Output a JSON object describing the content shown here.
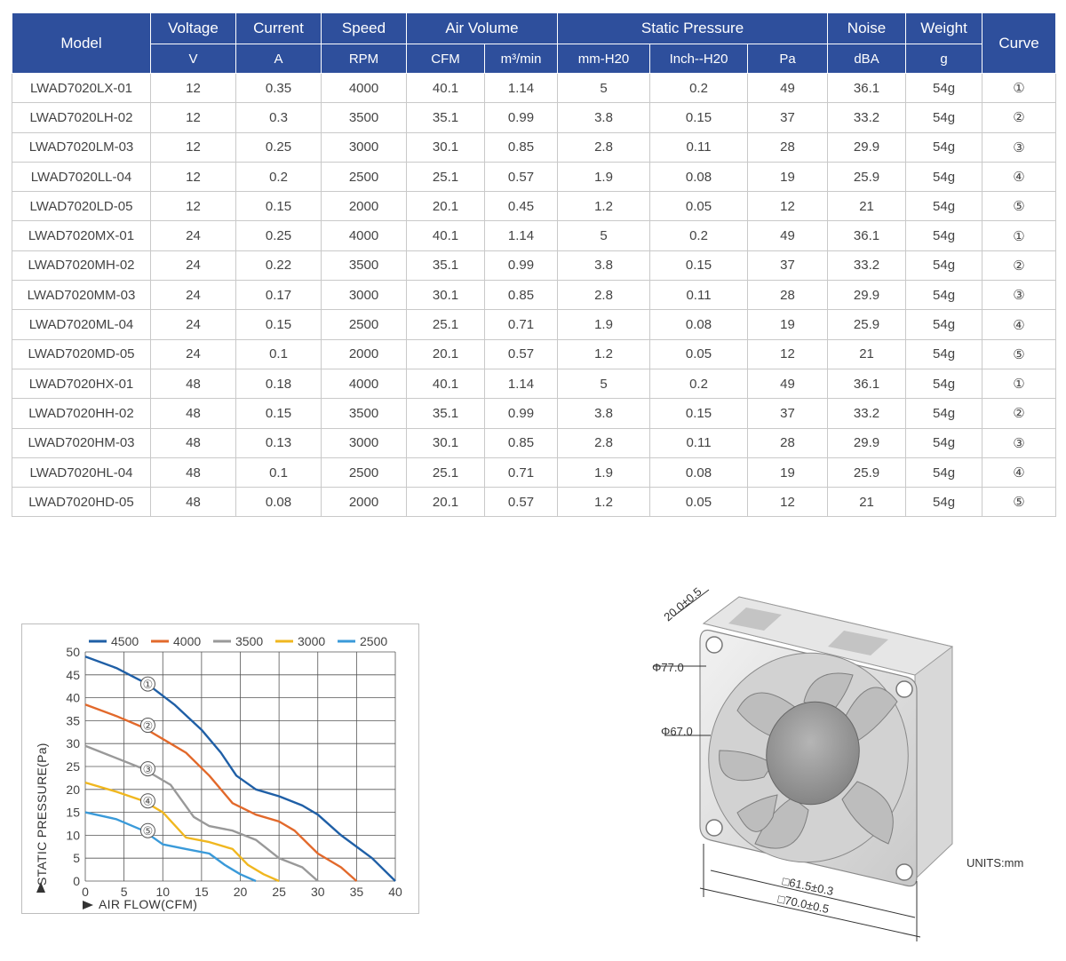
{
  "table": {
    "groups": [
      {
        "label": "Model",
        "rowspan": true
      },
      {
        "label": "Voltage",
        "colspan": 1
      },
      {
        "label": "Current",
        "colspan": 1
      },
      {
        "label": "Speed",
        "colspan": 1
      },
      {
        "label": "Air Volume",
        "colspan": 2
      },
      {
        "label": "Static Pressure",
        "colspan": 3
      },
      {
        "label": "Noise",
        "colspan": 1
      },
      {
        "label": "Weight",
        "colspan": 1
      },
      {
        "label": "Curve",
        "rowspan": true
      }
    ],
    "units": [
      "V",
      "A",
      "RPM",
      "CFM",
      "m³/min",
      "mm-H20",
      "Inch--H20",
      "Pa",
      "dBA",
      "g"
    ],
    "rows": [
      [
        "LWAD7020LX-01",
        "12",
        "0.35",
        "4000",
        "40.1",
        "1.14",
        "5",
        "0.2",
        "49",
        "36.1",
        "54g",
        "①"
      ],
      [
        "LWAD7020LH-02",
        "12",
        "0.3",
        "3500",
        "35.1",
        "0.99",
        "3.8",
        "0.15",
        "37",
        "33.2",
        "54g",
        "②"
      ],
      [
        "LWAD7020LM-03",
        "12",
        "0.25",
        "3000",
        "30.1",
        "0.85",
        "2.8",
        "0.11",
        "28",
        "29.9",
        "54g",
        "③"
      ],
      [
        "LWAD7020LL-04",
        "12",
        "0.2",
        "2500",
        "25.1",
        "0.57",
        "1.9",
        "0.08",
        "19",
        "25.9",
        "54g",
        "④"
      ],
      [
        "LWAD7020LD-05",
        "12",
        "0.15",
        "2000",
        "20.1",
        "0.45",
        "1.2",
        "0.05",
        "12",
        "21",
        "54g",
        "⑤"
      ],
      [
        "LWAD7020MX-01",
        "24",
        "0.25",
        "4000",
        "40.1",
        "1.14",
        "5",
        "0.2",
        "49",
        "36.1",
        "54g",
        "①"
      ],
      [
        "LWAD7020MH-02",
        "24",
        "0.22",
        "3500",
        "35.1",
        "0.99",
        "3.8",
        "0.15",
        "37",
        "33.2",
        "54g",
        "②"
      ],
      [
        "LWAD7020MM-03",
        "24",
        "0.17",
        "3000",
        "30.1",
        "0.85",
        "2.8",
        "0.11",
        "28",
        "29.9",
        "54g",
        "③"
      ],
      [
        "LWAD7020ML-04",
        "24",
        "0.15",
        "2500",
        "25.1",
        "0.71",
        "1.9",
        "0.08",
        "19",
        "25.9",
        "54g",
        "④"
      ],
      [
        "LWAD7020MD-05",
        "24",
        "0.1",
        "2000",
        "20.1",
        "0.57",
        "1.2",
        "0.05",
        "12",
        "21",
        "54g",
        "⑤"
      ],
      [
        "LWAD7020HX-01",
        "48",
        "0.18",
        "4000",
        "40.1",
        "1.14",
        "5",
        "0.2",
        "49",
        "36.1",
        "54g",
        "①"
      ],
      [
        "LWAD7020HH-02",
        "48",
        "0.15",
        "3500",
        "35.1",
        "0.99",
        "3.8",
        "0.15",
        "37",
        "33.2",
        "54g",
        "②"
      ],
      [
        "LWAD7020HM-03",
        "48",
        "0.13",
        "3000",
        "30.1",
        "0.85",
        "2.8",
        "0.11",
        "28",
        "29.9",
        "54g",
        "③"
      ],
      [
        "LWAD7020HL-04",
        "48",
        "0.1",
        "2500",
        "25.1",
        "0.71",
        "1.9",
        "0.08",
        "19",
        "25.9",
        "54g",
        "④"
      ],
      [
        "LWAD7020HD-05",
        "48",
        "0.08",
        "2000",
        "20.1",
        "0.57",
        "1.2",
        "0.05",
        "12",
        "21",
        "54g",
        "⑤"
      ]
    ]
  },
  "chart_data": {
    "type": "line",
    "xlabel": "AIR FLOW(CFM)",
    "ylabel": "STATIC PRESSURE(Pa)",
    "xlim": [
      0,
      40
    ],
    "ylim": [
      0,
      50
    ],
    "xticks": [
      "0",
      "5",
      "10",
      "15",
      "20",
      "25",
      "30",
      "35",
      "40"
    ],
    "yticks": [
      "0",
      "5",
      "10",
      "15",
      "20",
      "25",
      "30",
      "35",
      "40",
      "45",
      "50"
    ],
    "grid": true,
    "legend": "top",
    "series": [
      {
        "name": "4500",
        "color": "#1f5fa6",
        "label": "①",
        "label_at": [
          7.5,
          43
        ],
        "points": [
          [
            0,
            49
          ],
          [
            4,
            46.5
          ],
          [
            8,
            43
          ],
          [
            11.5,
            38.5
          ],
          [
            15,
            33
          ],
          [
            17.5,
            28
          ],
          [
            19.5,
            23
          ],
          [
            22,
            20
          ],
          [
            25,
            18.5
          ],
          [
            28,
            16.5
          ],
          [
            30,
            14.5
          ],
          [
            33,
            10
          ],
          [
            37,
            5
          ],
          [
            40,
            0
          ]
        ]
      },
      {
        "name": "4000",
        "color": "#e2692b",
        "label": "②",
        "label_at": [
          7.5,
          34
        ],
        "points": [
          [
            0,
            38.5
          ],
          [
            4,
            36
          ],
          [
            7.5,
            33.5
          ],
          [
            11,
            30
          ],
          [
            13,
            28
          ],
          [
            16,
            23
          ],
          [
            19,
            17
          ],
          [
            22,
            14.5
          ],
          [
            25,
            13
          ],
          [
            27,
            11
          ],
          [
            30,
            6
          ],
          [
            33,
            3
          ],
          [
            35,
            0
          ]
        ]
      },
      {
        "name": "3500",
        "color": "#999999",
        "label": "③",
        "label_at": [
          7.5,
          24.5
        ],
        "points": [
          [
            0,
            29.5
          ],
          [
            3,
            27.5
          ],
          [
            7.5,
            24.5
          ],
          [
            11,
            21
          ],
          [
            14,
            14
          ],
          [
            16,
            12
          ],
          [
            19,
            11
          ],
          [
            22,
            9
          ],
          [
            25,
            5
          ],
          [
            28,
            3
          ],
          [
            30,
            0
          ]
        ]
      },
      {
        "name": "3000",
        "color": "#f0b71f",
        "label": "④",
        "label_at": [
          7.5,
          17.5
        ],
        "points": [
          [
            0,
            21.5
          ],
          [
            4,
            19.5
          ],
          [
            7.5,
            17.5
          ],
          [
            10,
            15
          ],
          [
            13,
            9.5
          ],
          [
            16,
            8.5
          ],
          [
            19,
            7
          ],
          [
            21,
            3.5
          ],
          [
            23,
            1.5
          ],
          [
            25,
            0
          ]
        ]
      },
      {
        "name": "2500",
        "color": "#3a9ad9",
        "label": "⑤",
        "label_at": [
          7.5,
          11
        ],
        "points": [
          [
            0,
            15
          ],
          [
            4,
            13.5
          ],
          [
            7.5,
            11
          ],
          [
            10,
            8
          ],
          [
            13,
            7
          ],
          [
            16,
            6
          ],
          [
            18,
            3.5
          ],
          [
            20,
            1.5
          ],
          [
            22,
            0
          ]
        ]
      }
    ]
  },
  "fan": {
    "dim_frame": "20.0±0.5",
    "dim_outer_dia": "Φ77.0",
    "dim_inner_dia": "Φ67.0",
    "dim_hole": "□61.5±0.3",
    "dim_side": "□70.0±0.5",
    "units": "UNITS:mm"
  }
}
